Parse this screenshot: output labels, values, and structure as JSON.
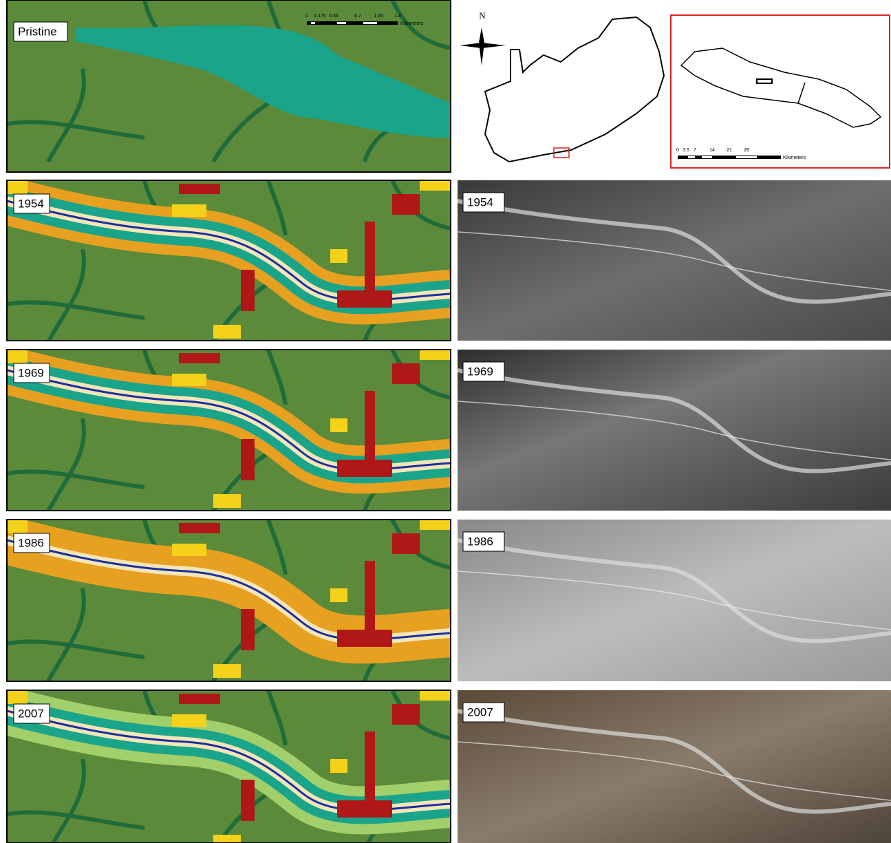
{
  "left_panels": [
    {
      "label": "Pristine"
    },
    {
      "label": "1954"
    },
    {
      "label": "1969"
    },
    {
      "label": "1986"
    },
    {
      "label": "2007"
    }
  ],
  "right_panels": [
    {
      "label": "1954"
    },
    {
      "label": "1969"
    },
    {
      "label": "1986"
    },
    {
      "label": "2007"
    }
  ],
  "scale_bar": {
    "ticks": [
      "0",
      "0.175",
      "0.35",
      "0.7",
      "1.05",
      "1.4"
    ],
    "unit": "Kilometers"
  },
  "locator": {
    "north": "N",
    "scale_ticks": [
      "0",
      "3.5",
      "7",
      "14",
      "21",
      "28"
    ],
    "unit": "Kilometers"
  }
}
